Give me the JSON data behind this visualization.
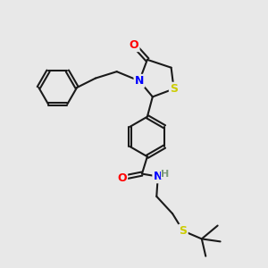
{
  "bg_color": "#e8e8e8",
  "bond_color": "#1a1a1a",
  "atom_colors": {
    "O": "#ff0000",
    "N": "#0000ff",
    "S": "#cccc00",
    "H": "#7a9a7a",
    "C": "#1a1a1a"
  },
  "font_size": 9,
  "line_width": 1.5
}
